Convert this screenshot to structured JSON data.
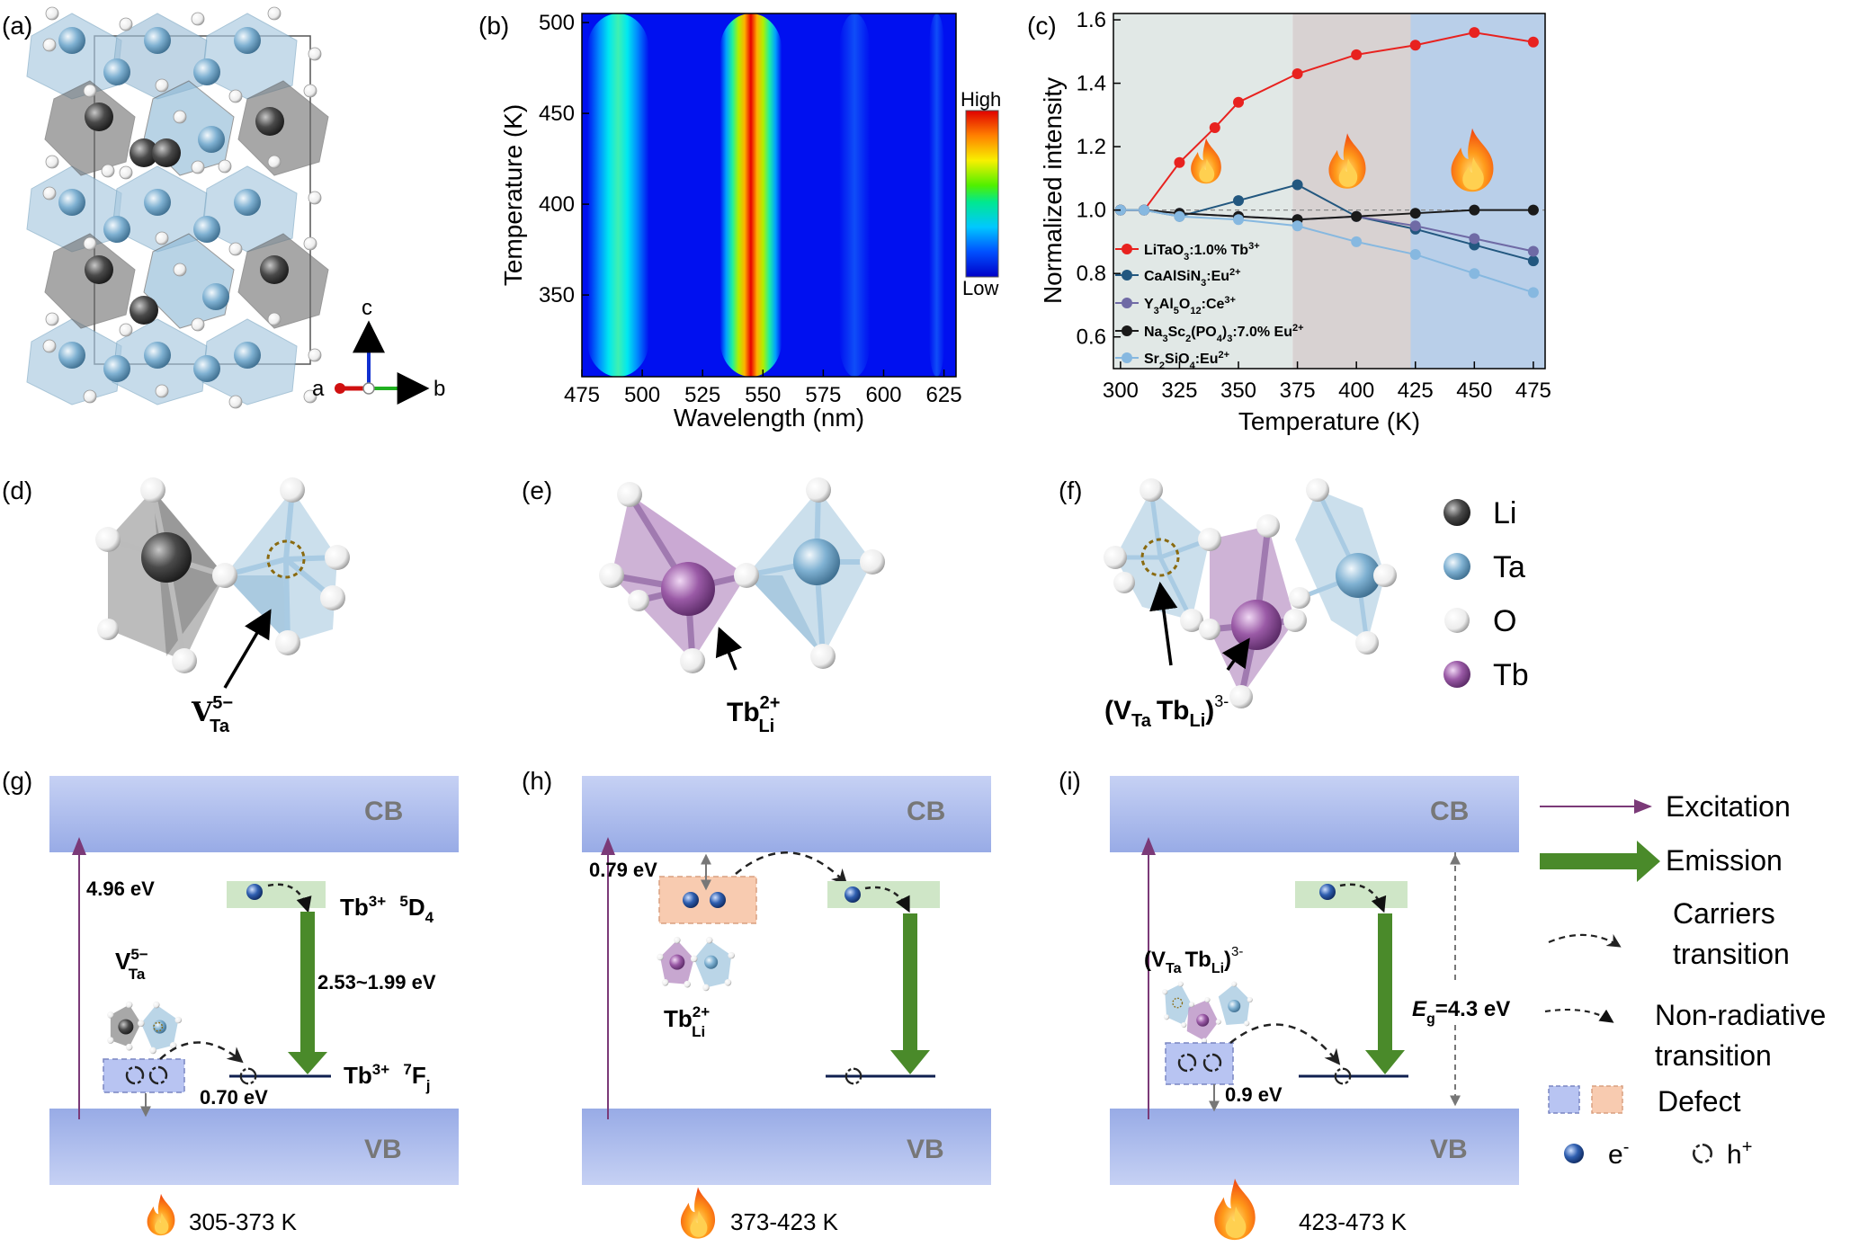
{
  "panels": {
    "a": "(a)",
    "b": "(b)",
    "c": "(c)",
    "d": "(d)",
    "e": "(e)",
    "f": "(f)",
    "g": "(g)",
    "h": "(h)",
    "i": "(i)"
  },
  "axes_a": {
    "a": "a",
    "b": "b",
    "c": "c"
  },
  "colorbar": {
    "high": "High",
    "low": "Low"
  },
  "chart_data": [
    {
      "type": "heatmap",
      "xlabel": "Wavelength (nm)",
      "ylabel": "Temperature (K)",
      "xlim": [
        475,
        630
      ],
      "ylim": [
        305,
        505
      ],
      "xticks": [
        "475",
        "500",
        "525",
        "550",
        "575",
        "600",
        "625"
      ],
      "yticks": [
        "350",
        "400",
        "450",
        "500"
      ],
      "bands": [
        {
          "center": 490,
          "width": 8,
          "level": 0.4
        },
        {
          "center": 545,
          "width": 8,
          "level": 1.0
        },
        {
          "center": 588,
          "width": 4,
          "level": 0.15
        },
        {
          "center": 622,
          "width": 2,
          "level": 0.08
        }
      ],
      "colorscale": "jet"
    },
    {
      "type": "line",
      "xlabel": "Temperature (K)",
      "ylabel": "Normalized intensity",
      "xlim": [
        297,
        480
      ],
      "ylim": [
        0.5,
        1.62
      ],
      "xticks": [
        "300",
        "325",
        "350",
        "375",
        "400",
        "425",
        "450",
        "475"
      ],
      "yticks": [
        "0.6",
        "0.8",
        "1.0",
        "1.2",
        "1.4",
        "1.6"
      ],
      "background_regions": [
        {
          "x": [
            297,
            373
          ],
          "color": "#e1e8e6"
        },
        {
          "x": [
            373,
            423
          ],
          "color": "#d8d2d2"
        },
        {
          "x": [
            423,
            480
          ],
          "color": "#b9cfe9"
        }
      ],
      "reference_line": 1.0,
      "legend_position": "lower-left",
      "series": [
        {
          "name": "LiTaO3:1.0% Tb3+",
          "color": "#e8221f",
          "x": [
            300,
            310,
            325,
            340,
            350,
            375,
            400,
            425,
            450,
            475
          ],
          "y": [
            1.0,
            1.0,
            1.15,
            1.26,
            1.34,
            1.43,
            1.49,
            1.52,
            1.56,
            1.53
          ]
        },
        {
          "name": "CaAlSiN3:Eu2+",
          "color": "#22577f",
          "x": [
            300,
            310,
            325,
            350,
            375,
            400,
            425,
            450,
            475
          ],
          "y": [
            1.0,
            1.0,
            0.98,
            1.03,
            1.08,
            0.98,
            0.94,
            0.89,
            0.84
          ]
        },
        {
          "name": "Y3Al5O12:Ce3+",
          "color": "#6f6aa5",
          "x": [
            300,
            310,
            325,
            350,
            375,
            400,
            425,
            450,
            475
          ],
          "y": [
            1.0,
            1.0,
            0.99,
            0.98,
            0.97,
            0.98,
            0.95,
            0.91,
            0.87
          ]
        },
        {
          "name": "Na3Sc2(PO4)3:7.0% Eu2+",
          "color": "#1a1a1a",
          "x": [
            300,
            310,
            325,
            350,
            375,
            400,
            425,
            450,
            475
          ],
          "y": [
            1.0,
            1.0,
            0.99,
            0.98,
            0.97,
            0.98,
            0.99,
            1.0,
            1.0
          ]
        },
        {
          "name": "Sr2SiO4:Eu2+",
          "color": "#86b8e0",
          "x": [
            300,
            310,
            325,
            350,
            375,
            400,
            425,
            450,
            475
          ],
          "y": [
            1.0,
            1.0,
            0.98,
            0.97,
            0.95,
            0.9,
            0.86,
            0.8,
            0.74
          ]
        }
      ]
    }
  ],
  "legend_c": {
    "l1": {
      "a": "LiTaO",
      "s1": "3",
      "b": ":1.0% Tb",
      "s2": "3+"
    },
    "l2": {
      "a": "CaAlSiN",
      "s1": "3",
      "b": ":Eu",
      "s2": "2+"
    },
    "l3": {
      "a": "Y",
      "s1": "3",
      "b": "Al",
      "s2": "5",
      "c": "O",
      "s3": "12",
      "d": ":Ce",
      "s4": "3+"
    },
    "l4": {
      "a": "Na",
      "s1": "3",
      "b": "Sc",
      "s2": "2",
      "c": "(PO",
      "s3": "4",
      "d": ")",
      "s4": "3",
      "e": ":7.0% Eu",
      "s5": "2+"
    },
    "l5": {
      "a": "Sr",
      "s1": "2",
      "b": "SiO",
      "s2": "4",
      "c": ":Eu",
      "s3": "2+"
    }
  },
  "structure_labels": {
    "d": {
      "v": "V",
      "sup": "5−",
      "sub": "Ta"
    },
    "e": {
      "v": "Tb",
      "sup": "2+",
      "sub": "Li"
    },
    "f": {
      "open": "(V",
      "sub1": "Ta",
      "mid": "Tb",
      "sub2": "Li",
      "close": ")",
      "sup": "3-"
    }
  },
  "element_legend": [
    "Li",
    "Ta",
    "O",
    "Tb"
  ],
  "energy": {
    "cb": "CB",
    "vb": "VB",
    "g": {
      "excitation": "4.96 eV",
      "tb_upper": {
        "a": "Tb",
        "s1": "3+",
        "s2": "5",
        "b": "D",
        "s3": "4"
      },
      "emission": "2.53~1.99 eV",
      "tb_lower": {
        "a": "Tb",
        "s1": "3+",
        "s2": "7",
        "b": "F",
        "s3": "j"
      },
      "defect_depth": "0.70 eV",
      "temp": "305-373 K"
    },
    "h": {
      "defect_depth": "0.79 eV",
      "temp": "373-423 K"
    },
    "i": {
      "gap_e": "E",
      "gap_sub": "g",
      "gap_val": "=4.3 eV",
      "defect_depth": "0.9 eV",
      "temp": "423-473 K"
    }
  },
  "scheme_legend": {
    "excitation": "Excitation",
    "emission": "Emission",
    "carriers_1": "Carriers",
    "carriers_2": "transition",
    "nonrad_1": "Non-radiative",
    "nonrad_2": "transition",
    "defect": "Defect",
    "electron": "e",
    "electron_sup": "-",
    "hole": "h",
    "hole_sup": "+"
  },
  "colors": {
    "li": "#4a4a4a",
    "ta": "#7fb1d2",
    "o": "#ffffff",
    "tb": "#9a5aa6",
    "excitation": "#7b3a78",
    "emission": "#4a8a2a",
    "band": "#a8b8ea",
    "level_box": "#cfe6c7",
    "defect_blue": "#b8c4f2",
    "defect_orange": "#f8cbb0"
  }
}
